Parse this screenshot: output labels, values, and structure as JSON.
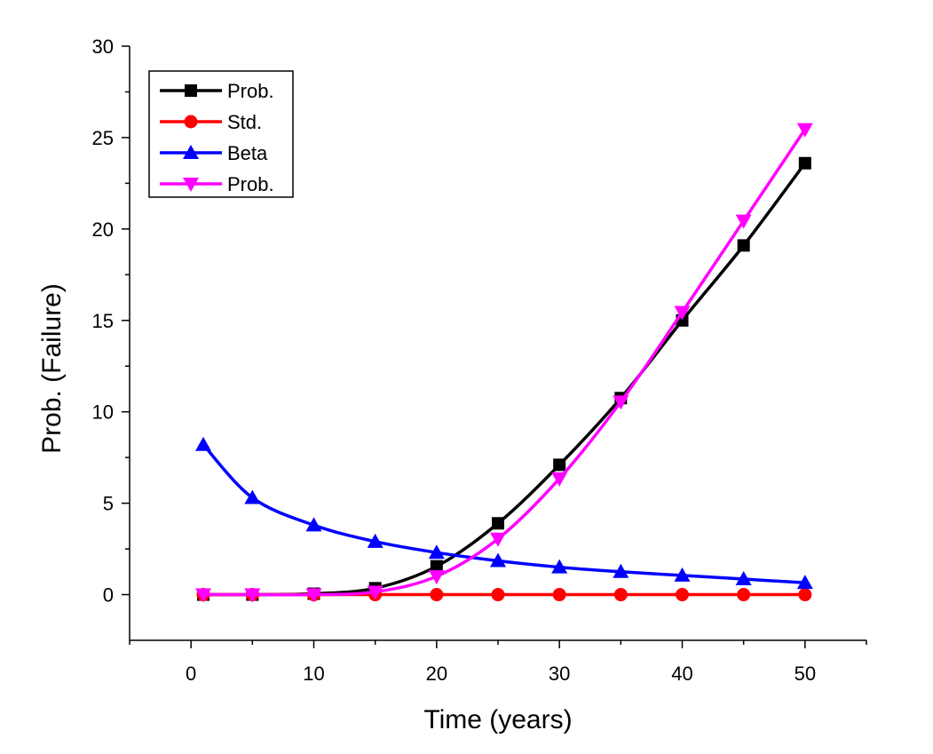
{
  "chart_data": {
    "type": "line",
    "xlabel": "Time (years)",
    "ylabel": "Prob. (Failure)",
    "xlim": [
      -5,
      55
    ],
    "ylim": [
      -2.5,
      30
    ],
    "x_ticks": [
      0,
      10,
      20,
      30,
      40,
      50
    ],
    "y_ticks": [
      0,
      5,
      10,
      15,
      20,
      25,
      30
    ],
    "grid": false,
    "legend": {
      "placement": "top-left"
    },
    "x": [
      1,
      5,
      10,
      15,
      20,
      25,
      30,
      35,
      40,
      45,
      50
    ],
    "series": [
      {
        "name": "Prob.",
        "color": "#000000",
        "marker": "square",
        "values": [
          0,
          0,
          0.05,
          0.35,
          1.55,
          3.9,
          7.1,
          10.75,
          15.0,
          19.1,
          23.6
        ]
      },
      {
        "name": "Std.",
        "color": "#ff0000",
        "marker": "circle",
        "values": [
          0,
          0,
          0,
          0,
          0,
          0,
          0,
          0,
          0,
          0,
          0
        ]
      },
      {
        "name": "Beta",
        "color": "#0000ff",
        "marker": "triangle-up",
        "values": [
          8.2,
          5.3,
          3.8,
          2.9,
          2.3,
          1.85,
          1.5,
          1.25,
          1.05,
          0.85,
          0.65
        ]
      },
      {
        "name": "Prob.",
        "color": "#ff00ff",
        "marker": "triangle-down",
        "values": [
          0,
          0,
          0,
          0.15,
          1.0,
          3.05,
          6.35,
          10.55,
          15.45,
          20.45,
          25.45
        ]
      }
    ]
  }
}
